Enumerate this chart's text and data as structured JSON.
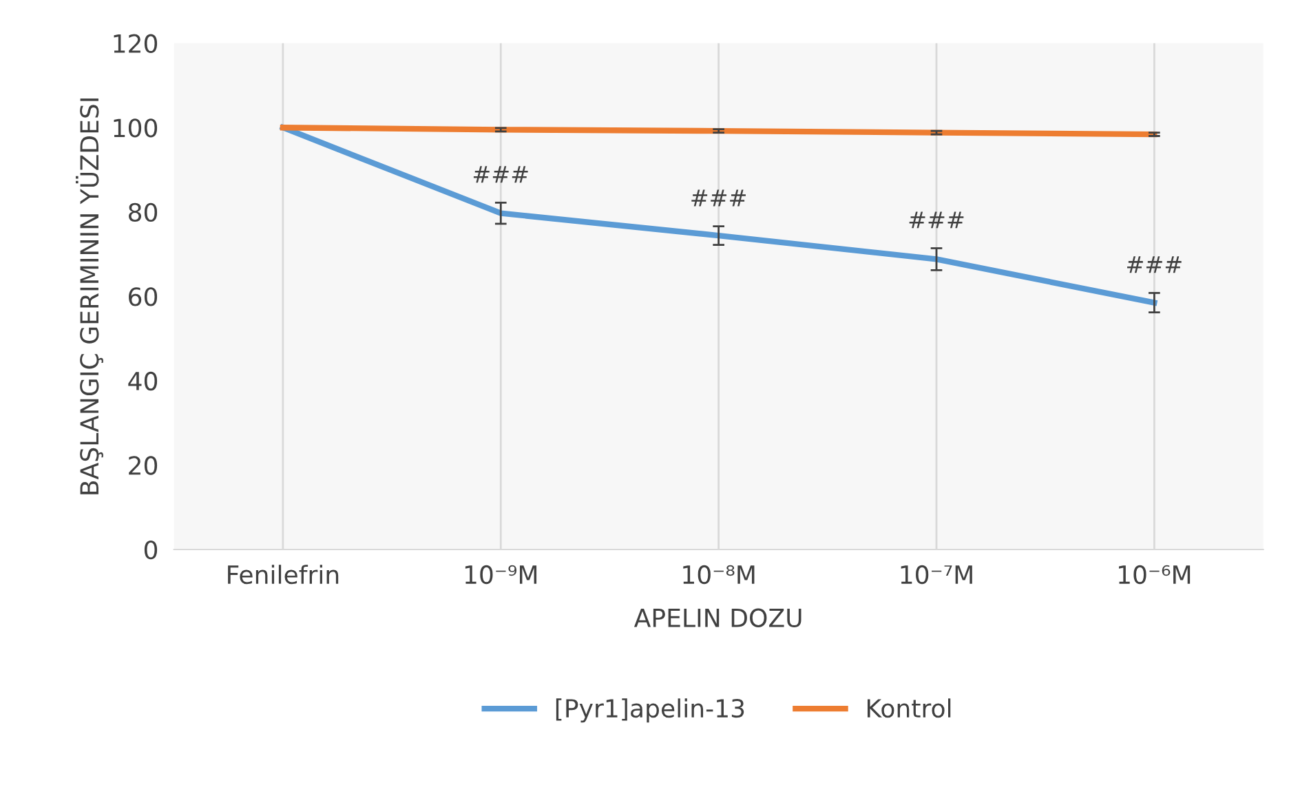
{
  "chart_data": {
    "type": "line",
    "xlabel": "APELIN DOZU",
    "ylabel": "BAŞLANGIÇ GERIMININ YÜZDESI",
    "categories": [
      "Fenilefrin",
      "10⁻⁹M",
      "10⁻⁸M",
      "10⁻⁷M",
      "10⁻⁶M"
    ],
    "series": [
      {
        "name": "[Pyr1]apelin-13",
        "color": "#5b9bd5",
        "values": [
          100,
          79.7,
          74.4,
          68.8,
          58.5
        ],
        "errors": [
          null,
          2.5,
          2.2,
          2.6,
          2.3
        ]
      },
      {
        "name": "Kontrol",
        "color": "#ed7d31",
        "values": [
          100,
          99.5,
          99.2,
          98.8,
          98.4
        ],
        "errors": [
          null,
          0.4,
          0.4,
          0.4,
          0.4
        ]
      }
    ],
    "annotations": [
      "###",
      "###",
      "###",
      "###"
    ],
    "ylim": [
      0,
      120
    ],
    "yticks": [
      0,
      20,
      40,
      60,
      80,
      100,
      120
    ],
    "grid": "x",
    "legend": "bottom",
    "marker": "none",
    "line_style": "solid"
  }
}
